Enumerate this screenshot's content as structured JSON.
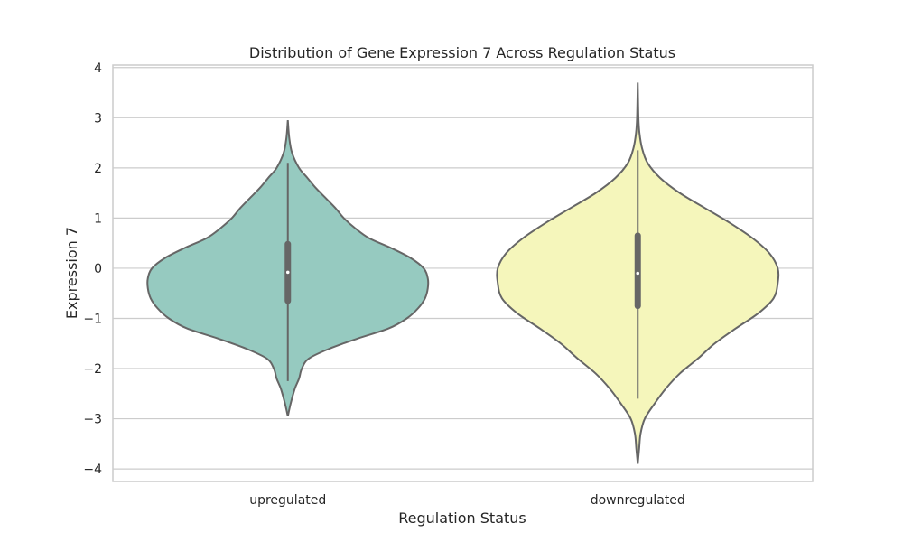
{
  "chart_data": {
    "type": "violin",
    "title": "Distribution of Gene Expression 7 Across Regulation Status",
    "xlabel": "Regulation Status",
    "ylabel": "Expression 7",
    "ylim": [
      -4.25,
      4.05
    ],
    "yticks": [
      -4,
      -3,
      -2,
      -1,
      0,
      1,
      2,
      3,
      4
    ],
    "ytick_labels": [
      "−4",
      "−3",
      "−2",
      "−1",
      "0",
      "1",
      "2",
      "3",
      "4"
    ],
    "grid": true,
    "categories": [
      "upregulated",
      "downregulated"
    ],
    "colors": [
      "#96cac0",
      "#f5f6bb"
    ],
    "violins": [
      {
        "name": "upregulated",
        "min": -2.95,
        "max": 2.95,
        "density": [
          [
            -2.95,
            0.0
          ],
          [
            -2.7,
            0.02
          ],
          [
            -2.4,
            0.05
          ],
          [
            -2.2,
            0.08
          ],
          [
            -2.0,
            0.1
          ],
          [
            -1.8,
            0.15
          ],
          [
            -1.6,
            0.3
          ],
          [
            -1.4,
            0.5
          ],
          [
            -1.2,
            0.72
          ],
          [
            -1.0,
            0.85
          ],
          [
            -0.8,
            0.93
          ],
          [
            -0.6,
            0.98
          ],
          [
            -0.4,
            1.0
          ],
          [
            -0.2,
            1.0
          ],
          [
            0.0,
            0.97
          ],
          [
            0.2,
            0.88
          ],
          [
            0.4,
            0.74
          ],
          [
            0.6,
            0.58
          ],
          [
            0.8,
            0.48
          ],
          [
            1.0,
            0.4
          ],
          [
            1.2,
            0.34
          ],
          [
            1.4,
            0.27
          ],
          [
            1.6,
            0.2
          ],
          [
            1.8,
            0.14
          ],
          [
            2.0,
            0.08
          ],
          [
            2.3,
            0.03
          ],
          [
            2.6,
            0.01
          ],
          [
            2.95,
            0.0
          ]
        ],
        "whisker_low": -2.25,
        "whisker_high": 2.1,
        "q1": -0.65,
        "q3": 0.48,
        "median": -0.08
      },
      {
        "name": "downregulated",
        "min": -3.9,
        "max": 3.7,
        "density": [
          [
            -3.9,
            0.0
          ],
          [
            -3.6,
            0.01
          ],
          [
            -3.3,
            0.02
          ],
          [
            -3.0,
            0.05
          ],
          [
            -2.7,
            0.12
          ],
          [
            -2.4,
            0.2
          ],
          [
            -2.1,
            0.3
          ],
          [
            -1.8,
            0.43
          ],
          [
            -1.5,
            0.55
          ],
          [
            -1.2,
            0.7
          ],
          [
            -0.9,
            0.86
          ],
          [
            -0.6,
            0.97
          ],
          [
            -0.3,
            1.0
          ],
          [
            0.0,
            1.0
          ],
          [
            0.3,
            0.94
          ],
          [
            0.6,
            0.82
          ],
          [
            0.9,
            0.66
          ],
          [
            1.2,
            0.48
          ],
          [
            1.5,
            0.3
          ],
          [
            1.8,
            0.16
          ],
          [
            2.1,
            0.07
          ],
          [
            2.4,
            0.03
          ],
          [
            2.7,
            0.012
          ],
          [
            3.0,
            0.005
          ],
          [
            3.7,
            0.0
          ]
        ],
        "whisker_low": -2.6,
        "whisker_high": 2.35,
        "q1": -0.75,
        "q3": 0.65,
        "median": -0.1
      }
    ]
  }
}
